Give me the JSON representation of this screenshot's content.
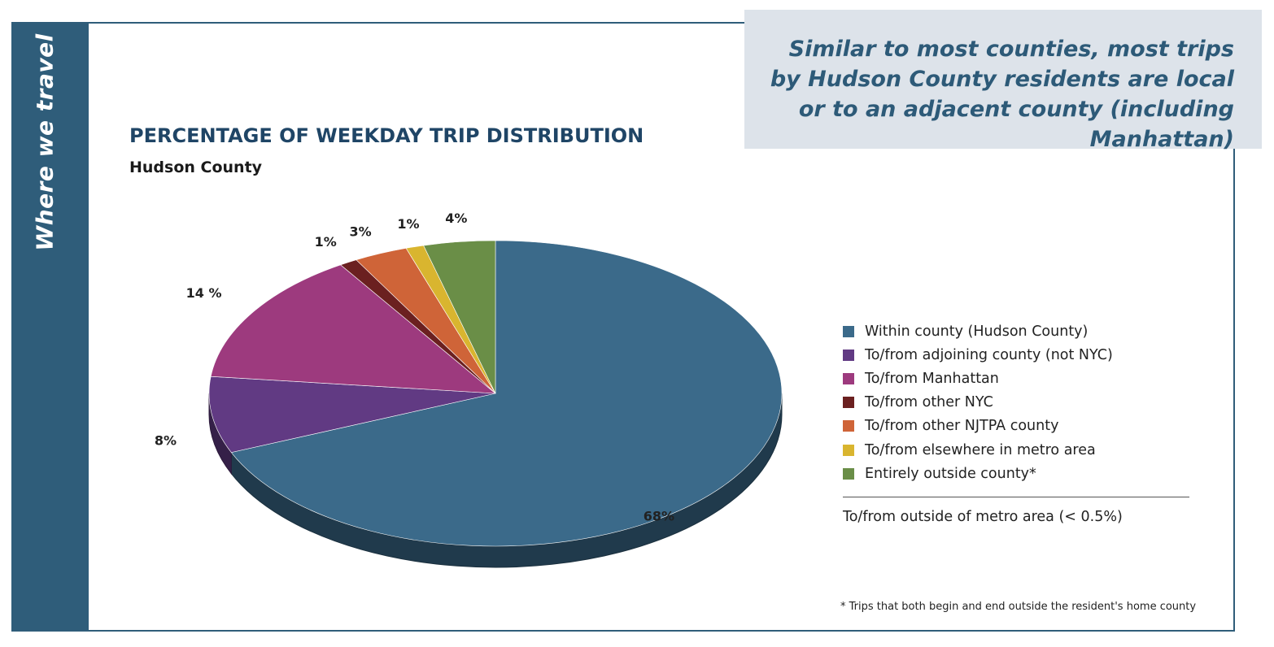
{
  "sidebar": {
    "label": "Where we travel"
  },
  "callout": {
    "text": "Similar to most counties, most trips by Hudson County residents are local or to an adjacent county (including Manhattan)"
  },
  "chart_data": {
    "type": "pie",
    "title": "PERCENTAGE OF WEEKDAY TRIP DISTRIBUTION",
    "subtitle": "Hudson County",
    "slices": [
      {
        "name": "Within county (Hudson County)",
        "value": 68,
        "label": "68%",
        "color": "#3b6a8a"
      },
      {
        "name": "To/from adjoining county (not NYC)",
        "value": 8,
        "label": "8%",
        "color": "#613a83"
      },
      {
        "name": "To/from Manhattan",
        "value": 14,
        "label": "14 %",
        "color": "#9d3a7e"
      },
      {
        "name": "To/from other NYC",
        "value": 1,
        "label": "1%",
        "color": "#6b2020"
      },
      {
        "name": "To/from other NJTPA county",
        "value": 3,
        "label": "3%",
        "color": "#cf6438"
      },
      {
        "name": "To/from elsewhere in metro area",
        "value": 1,
        "label": "1%",
        "color": "#d9b52f"
      },
      {
        "name": "Entirely outside county*",
        "value": 4,
        "label": "4%",
        "color": "#6a8e47"
      }
    ],
    "legend_extra": "To/from outside of metro area (< 0.5%)",
    "legend_position": "right",
    "style": "3d-tilted"
  },
  "footnote": "* Trips that both begin and end outside the resident's home county"
}
